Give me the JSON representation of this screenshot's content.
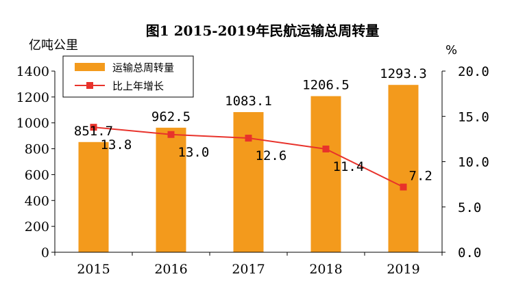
{
  "chart_data": {
    "type": "bar",
    "title": "图1 2015-2019年民航运输总周转量",
    "categories": [
      "2015",
      "2016",
      "2017",
      "2018",
      "2019"
    ],
    "left_axis": {
      "unit": "亿吨公里",
      "ylim": [
        0,
        1400
      ],
      "ticks": [
        0,
        200,
        400,
        600,
        800,
        1000,
        1200,
        1400
      ]
    },
    "right_axis": {
      "unit": "%",
      "ylim": [
        0,
        20
      ],
      "ticks": [
        "0.0",
        "5.0",
        "10.0",
        "15.0",
        "20.0"
      ]
    },
    "series": [
      {
        "name": "运输总周转量",
        "type": "bar",
        "axis": "left",
        "values": [
          851.7,
          962.5,
          1083.1,
          1206.5,
          1293.3
        ],
        "labels": [
          "851.7",
          "962.5",
          "1083.1",
          "1206.5",
          "1293.3"
        ]
      },
      {
        "name": "比上年增长",
        "type": "line",
        "axis": "right",
        "values": [
          13.8,
          13.0,
          12.6,
          11.4,
          7.2
        ],
        "labels": [
          "13.8",
          "13.0",
          "12.6",
          "11.4",
          "7.2"
        ]
      }
    ],
    "legend": "top-left",
    "grid": false
  },
  "colors": {
    "bar": "#f39a1c",
    "line": "#e8322b",
    "marker": "#e8322b",
    "axis": "#000000"
  }
}
